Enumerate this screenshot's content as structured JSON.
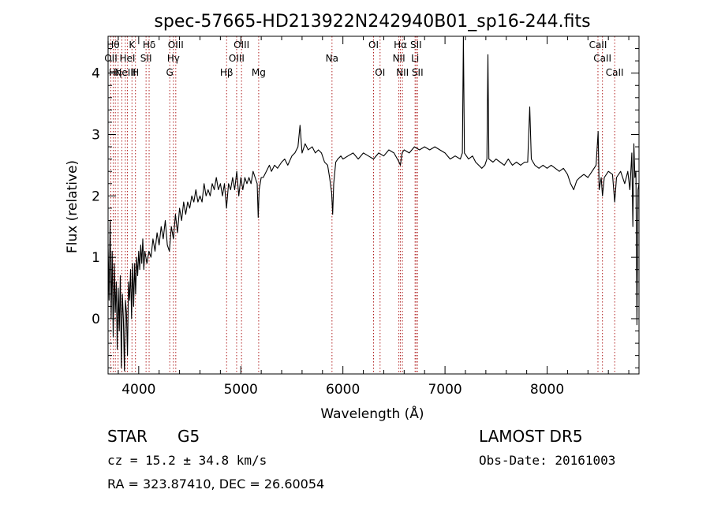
{
  "chart_data": {
    "type": "line",
    "title": "spec-57665-HD213922N242940B01_sp16-244.fits",
    "xlabel": "Wavelength (Å)",
    "ylabel": "Flux (relative)",
    "xlim": [
      3700,
      8900
    ],
    "ylim": [
      -0.9,
      4.6
    ],
    "xticks": [
      4000,
      5000,
      6000,
      7000,
      8000
    ],
    "yticks": [
      0,
      1,
      2,
      3,
      4
    ],
    "series": [
      {
        "points": [
          [
            3700,
            1.2
          ],
          [
            3710,
            0.3
          ],
          [
            3720,
            1.6
          ],
          [
            3730,
            0.0
          ],
          [
            3740,
            1.1
          ],
          [
            3750,
            -0.3
          ],
          [
            3760,
            0.9
          ],
          [
            3770,
            0.1
          ],
          [
            3780,
            0.6
          ],
          [
            3790,
            -0.5
          ],
          [
            3800,
            0.5
          ],
          [
            3810,
            -0.2
          ],
          [
            3820,
            0.7
          ],
          [
            3830,
            -0.8
          ],
          [
            3840,
            0.4
          ],
          [
            3850,
            0.0
          ],
          [
            3860,
            -0.85
          ],
          [
            3870,
            0.3
          ],
          [
            3880,
            0.1
          ],
          [
            3890,
            -0.6
          ],
          [
            3900,
            0.6
          ],
          [
            3910,
            0.3
          ],
          [
            3920,
            0.8
          ],
          [
            3930,
            0.0
          ],
          [
            3940,
            0.9
          ],
          [
            3950,
            0.2
          ],
          [
            3960,
            0.9
          ],
          [
            3970,
            0.4
          ],
          [
            3980,
            1.0
          ],
          [
            3990,
            0.7
          ],
          [
            4000,
            1.1
          ],
          [
            4010,
            0.8
          ],
          [
            4020,
            1.2
          ],
          [
            4030,
            0.9
          ],
          [
            4040,
            1.3
          ],
          [
            4050,
            0.8
          ],
          [
            4060,
            1.1
          ],
          [
            4080,
            0.9
          ],
          [
            4100,
            1.1
          ],
          [
            4120,
            1.0
          ],
          [
            4140,
            1.3
          ],
          [
            4160,
            1.1
          ],
          [
            4180,
            1.4
          ],
          [
            4200,
            1.2
          ],
          [
            4220,
            1.5
          ],
          [
            4240,
            1.3
          ],
          [
            4260,
            1.6
          ],
          [
            4280,
            1.2
          ],
          [
            4300,
            1.1
          ],
          [
            4320,
            1.5
          ],
          [
            4340,
            1.3
          ],
          [
            4360,
            1.7
          ],
          [
            4380,
            1.4
          ],
          [
            4400,
            1.8
          ],
          [
            4420,
            1.6
          ],
          [
            4440,
            1.9
          ],
          [
            4460,
            1.7
          ],
          [
            4480,
            1.9
          ],
          [
            4500,
            1.8
          ],
          [
            4520,
            2.0
          ],
          [
            4540,
            1.9
          ],
          [
            4560,
            2.1
          ],
          [
            4580,
            1.9
          ],
          [
            4600,
            2.0
          ],
          [
            4620,
            1.9
          ],
          [
            4640,
            2.2
          ],
          [
            4660,
            2.0
          ],
          [
            4680,
            2.1
          ],
          [
            4700,
            2.0
          ],
          [
            4720,
            2.2
          ],
          [
            4740,
            2.1
          ],
          [
            4760,
            2.3
          ],
          [
            4780,
            2.1
          ],
          [
            4800,
            2.2
          ],
          [
            4820,
            2.0
          ],
          [
            4840,
            2.2
          ],
          [
            4860,
            1.8
          ],
          [
            4880,
            2.2
          ],
          [
            4900,
            2.1
          ],
          [
            4920,
            2.3
          ],
          [
            4940,
            2.1
          ],
          [
            4960,
            2.4
          ],
          [
            4980,
            2.0
          ],
          [
            5000,
            2.3
          ],
          [
            5020,
            2.1
          ],
          [
            5040,
            2.3
          ],
          [
            5060,
            2.2
          ],
          [
            5080,
            2.3
          ],
          [
            5100,
            2.2
          ],
          [
            5120,
            2.4
          ],
          [
            5140,
            2.3
          ],
          [
            5160,
            2.2
          ],
          [
            5170,
            1.65
          ],
          [
            5180,
            2.1
          ],
          [
            5200,
            2.3
          ],
          [
            5220,
            2.3
          ],
          [
            5250,
            2.4
          ],
          [
            5280,
            2.5
          ],
          [
            5300,
            2.4
          ],
          [
            5330,
            2.5
          ],
          [
            5360,
            2.45
          ],
          [
            5400,
            2.55
          ],
          [
            5430,
            2.6
          ],
          [
            5460,
            2.5
          ],
          [
            5500,
            2.65
          ],
          [
            5530,
            2.7
          ],
          [
            5560,
            2.8
          ],
          [
            5580,
            3.15
          ],
          [
            5600,
            2.7
          ],
          [
            5630,
            2.85
          ],
          [
            5660,
            2.75
          ],
          [
            5700,
            2.8
          ],
          [
            5730,
            2.7
          ],
          [
            5760,
            2.75
          ],
          [
            5790,
            2.7
          ],
          [
            5820,
            2.55
          ],
          [
            5850,
            2.5
          ],
          [
            5870,
            2.3
          ],
          [
            5890,
            2.05
          ],
          [
            5900,
            1.7
          ],
          [
            5910,
            2.2
          ],
          [
            5930,
            2.55
          ],
          [
            5950,
            2.6
          ],
          [
            5980,
            2.65
          ],
          [
            6000,
            2.6
          ],
          [
            6050,
            2.65
          ],
          [
            6100,
            2.7
          ],
          [
            6150,
            2.6
          ],
          [
            6200,
            2.7
          ],
          [
            6250,
            2.65
          ],
          [
            6300,
            2.6
          ],
          [
            6350,
            2.7
          ],
          [
            6400,
            2.65
          ],
          [
            6450,
            2.75
          ],
          [
            6500,
            2.7
          ],
          [
            6550,
            2.55
          ],
          [
            6563,
            2.5
          ],
          [
            6580,
            2.7
          ],
          [
            6600,
            2.75
          ],
          [
            6650,
            2.7
          ],
          [
            6700,
            2.8
          ],
          [
            6750,
            2.75
          ],
          [
            6800,
            2.8
          ],
          [
            6850,
            2.75
          ],
          [
            6900,
            2.8
          ],
          [
            6950,
            2.75
          ],
          [
            7000,
            2.7
          ],
          [
            7050,
            2.6
          ],
          [
            7100,
            2.65
          ],
          [
            7150,
            2.6
          ],
          [
            7170,
            2.7
          ],
          [
            7180,
            4.6
          ],
          [
            7190,
            2.7
          ],
          [
            7230,
            2.6
          ],
          [
            7270,
            2.65
          ],
          [
            7300,
            2.55
          ],
          [
            7330,
            2.5
          ],
          [
            7360,
            2.45
          ],
          [
            7390,
            2.5
          ],
          [
            7410,
            2.6
          ],
          [
            7420,
            4.3
          ],
          [
            7430,
            2.6
          ],
          [
            7470,
            2.55
          ],
          [
            7500,
            2.6
          ],
          [
            7540,
            2.55
          ],
          [
            7580,
            2.5
          ],
          [
            7620,
            2.6
          ],
          [
            7660,
            2.5
          ],
          [
            7700,
            2.55
          ],
          [
            7740,
            2.5
          ],
          [
            7780,
            2.55
          ],
          [
            7810,
            2.55
          ],
          [
            7830,
            3.45
          ],
          [
            7845,
            2.6
          ],
          [
            7880,
            2.5
          ],
          [
            7920,
            2.45
          ],
          [
            7960,
            2.5
          ],
          [
            8000,
            2.45
          ],
          [
            8040,
            2.5
          ],
          [
            8080,
            2.45
          ],
          [
            8120,
            2.4
          ],
          [
            8160,
            2.45
          ],
          [
            8200,
            2.35
          ],
          [
            8230,
            2.2
          ],
          [
            8260,
            2.1
          ],
          [
            8290,
            2.25
          ],
          [
            8320,
            2.3
          ],
          [
            8360,
            2.35
          ],
          [
            8400,
            2.3
          ],
          [
            8440,
            2.4
          ],
          [
            8480,
            2.5
          ],
          [
            8500,
            3.05
          ],
          [
            8510,
            2.1
          ],
          [
            8530,
            2.3
          ],
          [
            8542,
            2.0
          ],
          [
            8560,
            2.3
          ],
          [
            8600,
            2.4
          ],
          [
            8640,
            2.35
          ],
          [
            8662,
            1.9
          ],
          [
            8680,
            2.3
          ],
          [
            8720,
            2.4
          ],
          [
            8760,
            2.2
          ],
          [
            8790,
            2.4
          ],
          [
            8810,
            2.1
          ],
          [
            8830,
            2.7
          ],
          [
            8840,
            1.5
          ],
          [
            8850,
            2.85
          ],
          [
            8860,
            2.3
          ],
          [
            8870,
            2.4
          ],
          [
            8880,
            -0.1
          ],
          [
            8890,
            2.1
          ],
          [
            8900,
            2.2
          ]
        ]
      }
    ],
    "lines": [
      {
        "wl": 3727,
        "label": "OII",
        "row": 1
      },
      {
        "wl": 3750,
        "label": "Hθ",
        "row": 0
      },
      {
        "wl": 3771,
        "label": "Hη",
        "row": 2
      },
      {
        "wl": 3798,
        "label": "",
        "row": 2
      },
      {
        "wl": 3835,
        "label": "",
        "row": 2
      },
      {
        "wl": 3869,
        "label": "NeIII",
        "row": 2
      },
      {
        "wl": 3889,
        "label": "HeI",
        "row": 1
      },
      {
        "wl": 3934,
        "label": "K",
        "row": 0
      },
      {
        "wl": 3968,
        "label": "H",
        "row": 2
      },
      {
        "wl": 4072,
        "label": "SII",
        "row": 1
      },
      {
        "wl": 4102,
        "label": "Hδ",
        "row": 0
      },
      {
        "wl": 4304,
        "label": "G",
        "row": 2
      },
      {
        "wl": 4340,
        "label": "Hγ",
        "row": 1
      },
      {
        "wl": 4363,
        "label": "OIII",
        "row": 0
      },
      {
        "wl": 4861,
        "label": "Hβ",
        "row": 2
      },
      {
        "wl": 4959,
        "label": "OIII",
        "row": 1
      },
      {
        "wl": 5007,
        "label": "OIII",
        "row": 0
      },
      {
        "wl": 5175,
        "label": "Mg",
        "row": 2
      },
      {
        "wl": 5893,
        "label": "Na",
        "row": 1
      },
      {
        "wl": 6300,
        "label": "OI",
        "row": 0
      },
      {
        "wl": 6364,
        "label": "OI",
        "row": 2
      },
      {
        "wl": 6548,
        "label": "NII",
        "row": 1
      },
      {
        "wl": 6563,
        "label": "Hα",
        "row": 0
      },
      {
        "wl": 6583,
        "label": "NII",
        "row": 2
      },
      {
        "wl": 6707,
        "label": "Li",
        "row": 1
      },
      {
        "wl": 6716,
        "label": "SII",
        "row": 0
      },
      {
        "wl": 6731,
        "label": "SII",
        "row": 2
      },
      {
        "wl": 8498,
        "label": "CaII",
        "row": 0
      },
      {
        "wl": 8542,
        "label": "CaII",
        "row": 1
      },
      {
        "wl": 8662,
        "label": "CaII",
        "row": 2
      }
    ]
  },
  "info": {
    "class": "STAR",
    "subclass": "G5",
    "survey": "LAMOST DR5",
    "cz": "cz = 15.2 ± 34.8 km/s",
    "obsdate": "Obs-Date: 20161003",
    "radec": "RA = 323.87410, DEC =  26.60054"
  }
}
